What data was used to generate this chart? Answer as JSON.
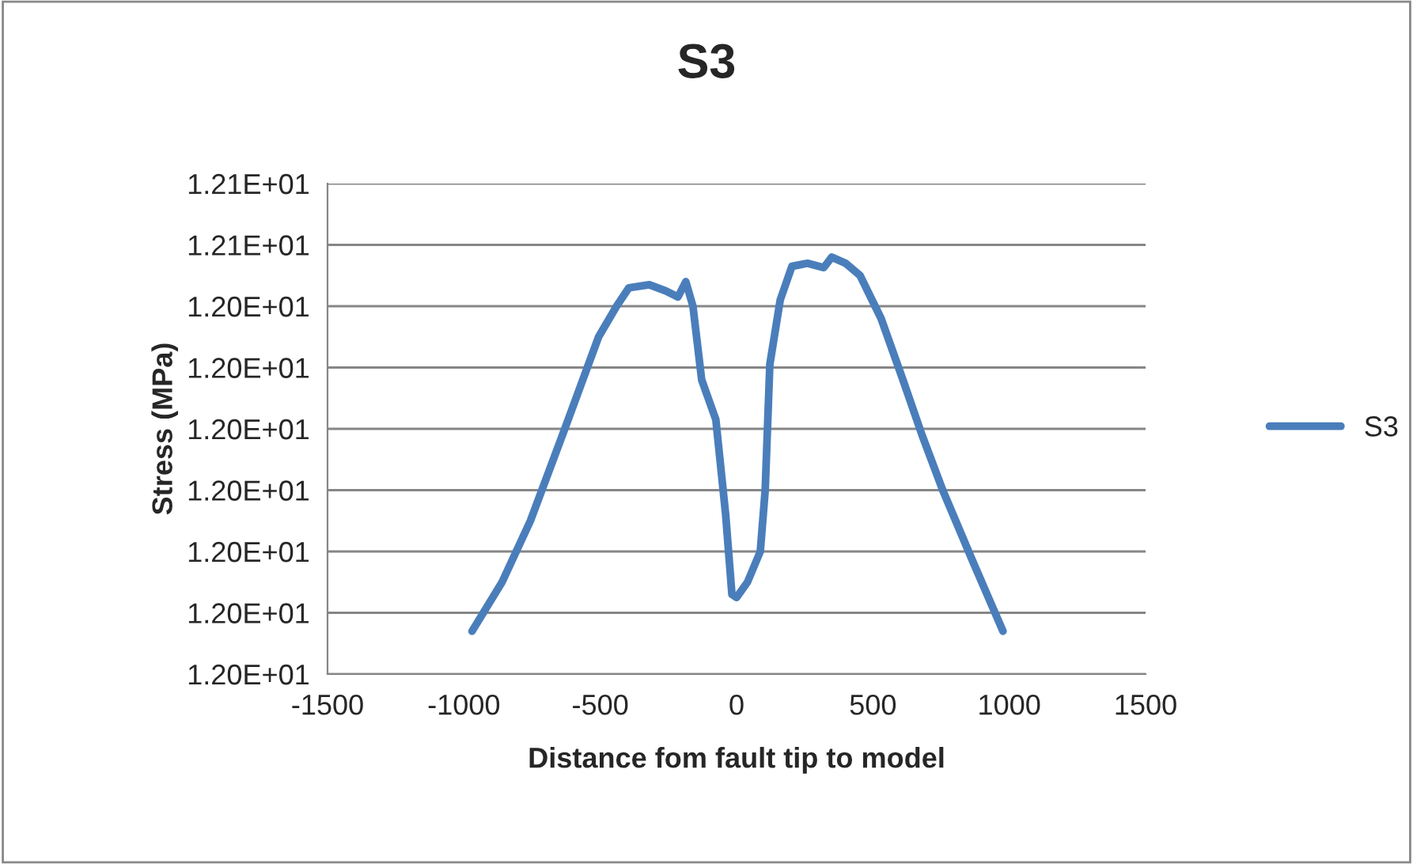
{
  "chart_data": {
    "type": "line",
    "title": "S3",
    "xlabel": "Distance fom fault tip to model",
    "ylabel": "Stress (MPa)",
    "series": [
      {
        "name": "S3",
        "color": "#4a7ebb",
        "x": [
          -970,
          -860,
          -756,
          -630,
          -506,
          -440,
          -395,
          -320,
          -260,
          -215,
          -186,
          -160,
          -128,
          -76,
          -40,
          -17,
          0,
          40,
          87,
          105,
          122,
          160,
          203,
          260,
          320,
          349,
          400,
          453,
          530,
          610,
          680,
          756,
          870,
          977
        ],
        "values": [
          11.987,
          11.995,
          12.005,
          12.02,
          12.035,
          12.04,
          12.043,
          12.0435,
          12.0425,
          12.0415,
          12.044,
          12.04,
          12.028,
          12.0215,
          12.006,
          11.993,
          11.9925,
          11.995,
          12.0,
          12.01,
          12.0305,
          12.041,
          12.0465,
          12.047,
          12.0463,
          12.048,
          12.047,
          12.045,
          12.038,
          12.028,
          12.019,
          12.01,
          11.998,
          11.987
        ]
      }
    ],
    "xlim": [
      -1500,
      1500
    ],
    "xticks": [
      -1500,
      -1000,
      -500,
      0,
      500,
      1000,
      1500
    ],
    "ylim": [
      11.98,
      12.06
    ],
    "yticks": [
      {
        "value": 11.98,
        "label": "1.20E+01"
      },
      {
        "value": 11.99,
        "label": "1.20E+01"
      },
      {
        "value": 12.0,
        "label": "1.20E+01"
      },
      {
        "value": 12.01,
        "label": "1.20E+01"
      },
      {
        "value": 12.02,
        "label": "1.20E+01"
      },
      {
        "value": 12.03,
        "label": "1.20E+01"
      },
      {
        "value": 12.04,
        "label": "1.20E+01"
      },
      {
        "value": 12.05,
        "label": "1.21E+01"
      },
      {
        "value": 12.06,
        "label": "1.21E+01"
      }
    ],
    "grid": "y",
    "legend": "right",
    "marker": "none",
    "line_style": "solid"
  }
}
